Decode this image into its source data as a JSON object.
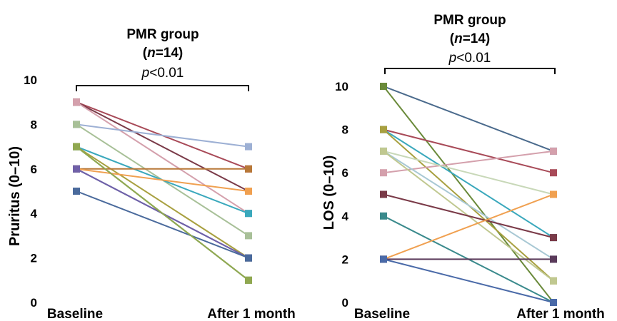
{
  "chart_data": [
    {
      "type": "line",
      "title_line1": "PMR group",
      "title_n": "n",
      "title_n_rest": "=14",
      "annotation_p": "p",
      "annotation_rest": "<0.01",
      "ylabel": "Pruritus (0–10)",
      "categories": [
        "Baseline",
        "After 1 month"
      ],
      "ylim": [
        0,
        10
      ],
      "yticks": [
        "0",
        "2",
        "4",
        "6",
        "8",
        "10"
      ],
      "series": [
        {
          "color": "#a84a58",
          "values": [
            9,
            6
          ]
        },
        {
          "color": "#7a3a48",
          "values": [
            9,
            5
          ]
        },
        {
          "color": "#d4a0ac",
          "values": [
            9,
            4
          ]
        },
        {
          "color": "#9db0d4",
          "values": [
            8,
            7
          ]
        },
        {
          "color": "#a8c098",
          "values": [
            8,
            3
          ]
        },
        {
          "color": "#3aa8bc",
          "values": [
            7,
            4
          ]
        },
        {
          "color": "#5a8a3a",
          "values": [
            7,
            1
          ]
        },
        {
          "color": "#a8a040",
          "values": [
            7,
            2
          ]
        },
        {
          "color": "#b87838",
          "values": [
            6,
            6
          ]
        },
        {
          "color": "#f0a050",
          "values": [
            6,
            5
          ]
        },
        {
          "color": "#4a6aa8",
          "values": [
            6,
            2
          ]
        },
        {
          "color": "#7060a8",
          "values": [
            6,
            2
          ]
        },
        {
          "color": "#4a6a9c",
          "values": [
            5,
            2
          ]
        },
        {
          "color": "#90a850",
          "values": [
            7,
            1
          ]
        }
      ]
    },
    {
      "type": "line",
      "title_line1": "PMR group",
      "title_n": "n",
      "title_n_rest": "=14",
      "annotation_p": "p",
      "annotation_rest": "<0.01",
      "ylabel": "LOS (0–10)",
      "categories": [
        "Baseline",
        "After 1 month"
      ],
      "ylim": [
        0,
        10
      ],
      "yticks": [
        "0",
        "2",
        "4",
        "6",
        "8",
        "10"
      ],
      "series": [
        {
          "color": "#4a6a8c",
          "values": [
            10,
            7
          ]
        },
        {
          "color": "#6a8a3a",
          "values": [
            10,
            0
          ]
        },
        {
          "color": "#a84a58",
          "values": [
            8,
            6
          ]
        },
        {
          "color": "#3aa8bc",
          "values": [
            8,
            3
          ]
        },
        {
          "color": "#a8a040",
          "values": [
            8,
            1
          ]
        },
        {
          "color": "#d4a0ac",
          "values": [
            6,
            7
          ]
        },
        {
          "color": "#c8d8b8",
          "values": [
            7,
            5
          ]
        },
        {
          "color": "#a8c8d4",
          "values": [
            7,
            2
          ]
        },
        {
          "color": "#c0c890",
          "values": [
            7,
            1
          ]
        },
        {
          "color": "#7a3a48",
          "values": [
            5,
            3
          ]
        },
        {
          "color": "#3a8a8c",
          "values": [
            4,
            0
          ]
        },
        {
          "color": "#f0a050",
          "values": [
            2,
            5
          ]
        },
        {
          "color": "#5a3a5a",
          "values": [
            2,
            2
          ]
        },
        {
          "color": "#4a6aa8",
          "values": [
            2,
            0
          ]
        }
      ]
    }
  ]
}
